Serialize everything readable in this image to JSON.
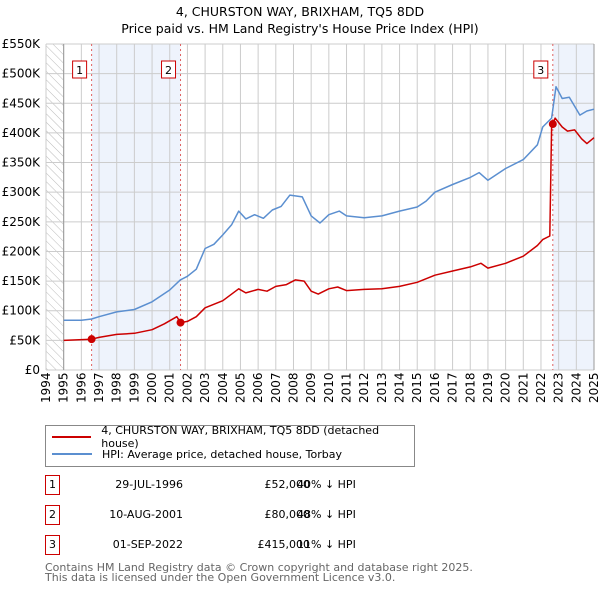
{
  "title": "4, CHURSTON WAY, BRIXHAM, TQ5 8DD",
  "subtitle": "Price paid vs. HM Land Registry's House Price Index (HPI)",
  "colors": {
    "property": "#cc0000",
    "hpi": "#5b8fd0",
    "shade": "#eef3fc",
    "grid": "#cccccc"
  },
  "chart_data": {
    "type": "line",
    "title": "4, CHURSTON WAY, BRIXHAM, TQ5 8DD",
    "xlim": [
      1994,
      2025
    ],
    "ylim": [
      0,
      550000
    ],
    "x_ticks": [
      "1994",
      "1995",
      "1996",
      "1997",
      "1998",
      "1999",
      "2000",
      "2001",
      "2002",
      "2003",
      "2004",
      "2005",
      "2006",
      "2007",
      "2008",
      "2009",
      "2010",
      "2011",
      "2012",
      "2013",
      "2014",
      "2015",
      "2016",
      "2017",
      "2018",
      "2019",
      "2020",
      "2021",
      "2022",
      "2023",
      "2024",
      "2025"
    ],
    "y_ticks": [
      {
        "v": 0,
        "label": "£0"
      },
      {
        "v": 50000,
        "label": "£50K"
      },
      {
        "v": 100000,
        "label": "£100K"
      },
      {
        "v": 150000,
        "label": "£150K"
      },
      {
        "v": 200000,
        "label": "£200K"
      },
      {
        "v": 250000,
        "label": "£250K"
      },
      {
        "v": 300000,
        "label": "£300K"
      },
      {
        "v": 350000,
        "label": "£350K"
      },
      {
        "v": 400000,
        "label": "£400K"
      },
      {
        "v": 450000,
        "label": "£450K"
      },
      {
        "v": 500000,
        "label": "£500K"
      },
      {
        "v": 550000,
        "label": "£550K"
      }
    ],
    "grid": true,
    "series": [
      {
        "name": "4, CHURSTON WAY, BRIXHAM, TQ5 8DD (detached house)",
        "color": "#cc0000",
        "points": [
          [
            1995,
            50000
          ],
          [
            1996.58,
            52000
          ],
          [
            1997,
            55000
          ],
          [
            1998,
            60000
          ],
          [
            1999,
            62000
          ],
          [
            2000,
            68000
          ],
          [
            2000.7,
            78000
          ],
          [
            2001.4,
            90000
          ],
          [
            2001.61,
            80000
          ],
          [
            2002,
            82000
          ],
          [
            2002.5,
            90000
          ],
          [
            2003,
            105000
          ],
          [
            2004,
            117000
          ],
          [
            2004.9,
            137000
          ],
          [
            2005.3,
            130000
          ],
          [
            2006,
            136000
          ],
          [
            2006.5,
            133000
          ],
          [
            2007,
            141000
          ],
          [
            2007.6,
            144000
          ],
          [
            2008.1,
            152000
          ],
          [
            2008.6,
            150000
          ],
          [
            2009,
            133000
          ],
          [
            2009.4,
            128000
          ],
          [
            2010,
            137000
          ],
          [
            2010.5,
            140000
          ],
          [
            2011,
            134000
          ],
          [
            2012,
            136000
          ],
          [
            2013,
            137000
          ],
          [
            2014,
            141000
          ],
          [
            2015,
            148000
          ],
          [
            2016,
            160000
          ],
          [
            2017,
            167000
          ],
          [
            2018,
            174000
          ],
          [
            2018.6,
            180000
          ],
          [
            2019,
            172000
          ],
          [
            2020,
            180000
          ],
          [
            2021,
            192000
          ],
          [
            2021.8,
            210000
          ],
          [
            2022.1,
            220000
          ],
          [
            2022.5,
            226000
          ],
          [
            2022.6,
            410000
          ],
          [
            2022.67,
            415000
          ],
          [
            2022.8,
            425000
          ],
          [
            2023.2,
            410000
          ],
          [
            2023.5,
            403000
          ],
          [
            2023.9,
            405000
          ],
          [
            2024.3,
            390000
          ],
          [
            2024.6,
            382000
          ],
          [
            2025,
            392000
          ]
        ]
      },
      {
        "name": "HPI: Average price, detached house, Torbay",
        "color": "#5b8fd0",
        "points": [
          [
            1995,
            84000
          ],
          [
            1996,
            84000
          ],
          [
            1996.58,
            86000
          ],
          [
            1997,
            90000
          ],
          [
            1998,
            98000
          ],
          [
            1999,
            102000
          ],
          [
            2000,
            115000
          ],
          [
            2001,
            135000
          ],
          [
            2001.6,
            152000
          ],
          [
            2002,
            158000
          ],
          [
            2002.5,
            170000
          ],
          [
            2003,
            205000
          ],
          [
            2003.5,
            212000
          ],
          [
            2004,
            228000
          ],
          [
            2004.5,
            245000
          ],
          [
            2004.9,
            268000
          ],
          [
            2005.3,
            255000
          ],
          [
            2005.8,
            262000
          ],
          [
            2006.3,
            256000
          ],
          [
            2006.8,
            270000
          ],
          [
            2007.3,
            276000
          ],
          [
            2007.8,
            295000
          ],
          [
            2008.5,
            292000
          ],
          [
            2009,
            260000
          ],
          [
            2009.5,
            248000
          ],
          [
            2010,
            262000
          ],
          [
            2010.6,
            268000
          ],
          [
            2011,
            260000
          ],
          [
            2012,
            257000
          ],
          [
            2013,
            260000
          ],
          [
            2014,
            268000
          ],
          [
            2015,
            275000
          ],
          [
            2015.5,
            285000
          ],
          [
            2016,
            300000
          ],
          [
            2017,
            313000
          ],
          [
            2018,
            325000
          ],
          [
            2018.5,
            333000
          ],
          [
            2019,
            320000
          ],
          [
            2020,
            340000
          ],
          [
            2021,
            355000
          ],
          [
            2021.8,
            380000
          ],
          [
            2022.1,
            410000
          ],
          [
            2022.6,
            425000
          ],
          [
            2022.85,
            478000
          ],
          [
            2023.2,
            458000
          ],
          [
            2023.6,
            460000
          ],
          [
            2024.2,
            430000
          ],
          [
            2024.6,
            437000
          ],
          [
            2025,
            440000
          ]
        ]
      }
    ],
    "sales": [
      {
        "id": "1",
        "x": 1996.58,
        "price": 52000
      },
      {
        "id": "2",
        "x": 2001.61,
        "price": 80000
      },
      {
        "id": "3",
        "x": 2022.67,
        "price": 415000
      }
    ],
    "shaded_ranges": [
      [
        1996.58,
        2001.61
      ],
      [
        2022.67,
        2025
      ]
    ],
    "hatched_ranges": [
      [
        1994,
        1995
      ]
    ]
  },
  "legend": {
    "property_label": "4, CHURSTON WAY, BRIXHAM, TQ5 8DD (detached house)",
    "hpi_label": "HPI: Average price, detached house, Torbay"
  },
  "transactions": [
    {
      "num": "1",
      "date": "29-JUL-1996",
      "price": "£52,000",
      "hpi": "40% ↓ HPI"
    },
    {
      "num": "2",
      "date": "10-AUG-2001",
      "price": "£80,000",
      "hpi": "48% ↓ HPI"
    },
    {
      "num": "3",
      "date": "01-SEP-2022",
      "price": "£415,000",
      "hpi": "11% ↓ HPI"
    }
  ],
  "footer": {
    "line1": "Contains HM Land Registry data © Crown copyright and database right 2025.",
    "line2": "This data is licensed under the Open Government Licence v3.0."
  }
}
